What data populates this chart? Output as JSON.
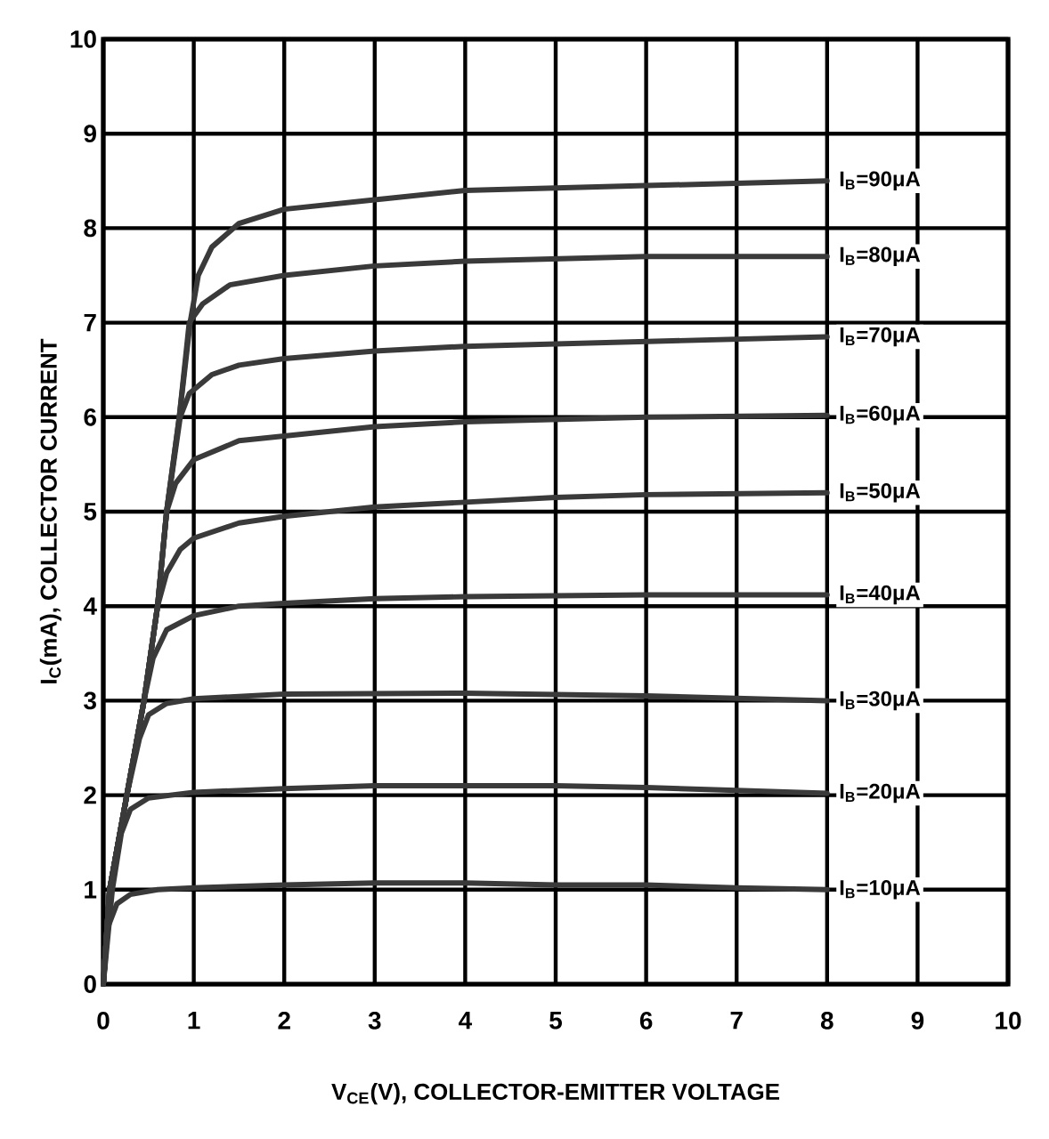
{
  "chart_data": {
    "type": "line",
    "xlabel": "V$_{CE}$(V), COLLECTOR-EMITTER VOLTAGE",
    "ylabel": "I$_{C}$(mA), COLLECTOR CURRENT",
    "xlim": [
      0,
      10
    ],
    "ylim": [
      0,
      10
    ],
    "xticks": [
      0,
      1,
      2,
      3,
      4,
      5,
      6,
      7,
      8,
      9,
      10
    ],
    "yticks": [
      0,
      1,
      2,
      3,
      4,
      5,
      6,
      7,
      8,
      9,
      10
    ],
    "grid": true,
    "marker": "none",
    "line_style": "solid",
    "series": [
      {
        "name": "I$_{B}$=10μA",
        "color": "#3a3a3a",
        "x": [
          0,
          0.05,
          0.15,
          0.3,
          0.6,
          1,
          2,
          3,
          4,
          5,
          6,
          7,
          8
        ],
        "values": [
          0,
          0.6,
          0.85,
          0.95,
          1.0,
          1.02,
          1.05,
          1.07,
          1.07,
          1.05,
          1.05,
          1.02,
          1.0
        ]
      },
      {
        "name": "I$_{B}$=20μA",
        "color": "#3a3a3a",
        "x": [
          0,
          0.1,
          0.2,
          0.3,
          0.5,
          1,
          2,
          3,
          4,
          5,
          6,
          7,
          8
        ],
        "values": [
          0,
          1.0,
          1.6,
          1.85,
          1.97,
          2.03,
          2.07,
          2.1,
          2.1,
          2.1,
          2.08,
          2.05,
          2.02
        ]
      },
      {
        "name": "I$_{B}$=30μA",
        "color": "#3a3a3a",
        "x": [
          0,
          0.07,
          0.26,
          0.4,
          0.5,
          0.7,
          1,
          2,
          4,
          6,
          8
        ],
        "values": [
          0,
          1,
          2,
          2.6,
          2.85,
          2.97,
          3.02,
          3.07,
          3.08,
          3.05,
          3.0
        ]
      },
      {
        "name": "I$_{B}$=40μA",
        "color": "#3a3a3a",
        "x": [
          0,
          0.07,
          0.26,
          0.45,
          0.55,
          0.7,
          1,
          1.5,
          2,
          3,
          4,
          6,
          8
        ],
        "values": [
          0,
          1,
          2,
          3,
          3.45,
          3.75,
          3.9,
          4.0,
          4.03,
          4.08,
          4.1,
          4.12,
          4.12
        ]
      },
      {
        "name": "I$_{B}$=50μA",
        "color": "#3a3a3a",
        "x": [
          0,
          0.07,
          0.26,
          0.45,
          0.6,
          0.7,
          0.85,
          1,
          1.5,
          2,
          3,
          4,
          5,
          6,
          8
        ],
        "values": [
          0,
          1,
          2,
          3,
          4.0,
          4.35,
          4.6,
          4.72,
          4.88,
          4.95,
          5.05,
          5.1,
          5.15,
          5.18,
          5.2
        ]
      },
      {
        "name": "I$_{B}$=60μA",
        "color": "#3a3a3a",
        "x": [
          0,
          0.07,
          0.26,
          0.45,
          0.6,
          0.7,
          0.8,
          1,
          1.5,
          2,
          3,
          4,
          6,
          8
        ],
        "values": [
          0,
          1,
          2,
          3,
          4,
          5.0,
          5.3,
          5.55,
          5.75,
          5.8,
          5.9,
          5.95,
          6.0,
          6.02
        ]
      },
      {
        "name": "I$_{B}$=70μA",
        "color": "#3a3a3a",
        "x": [
          0,
          0.07,
          0.26,
          0.45,
          0.6,
          0.7,
          0.85,
          0.95,
          1.2,
          1.5,
          2,
          3,
          4,
          6,
          8
        ],
        "values": [
          0,
          1,
          2,
          3,
          4,
          5,
          6.0,
          6.25,
          6.45,
          6.55,
          6.62,
          6.7,
          6.75,
          6.8,
          6.85
        ]
      },
      {
        "name": "I$_{B}$=80μA",
        "color": "#3a3a3a",
        "x": [
          0,
          0.07,
          0.26,
          0.45,
          0.6,
          0.7,
          0.84,
          0.95,
          1.1,
          1.4,
          2,
          3,
          4,
          6,
          8
        ],
        "values": [
          0,
          1,
          2,
          3,
          4,
          5,
          6,
          7.0,
          7.2,
          7.4,
          7.5,
          7.6,
          7.65,
          7.7,
          7.7
        ]
      },
      {
        "name": "I$_{B}$=90μA",
        "color": "#3a3a3a",
        "x": [
          0,
          0.07,
          0.26,
          0.45,
          0.6,
          0.7,
          0.84,
          0.96,
          1.05,
          1.2,
          1.5,
          2,
          3,
          4,
          6,
          8
        ],
        "values": [
          0,
          1,
          2,
          3,
          4,
          5,
          6,
          7,
          7.5,
          7.8,
          8.05,
          8.2,
          8.3,
          8.4,
          8.45,
          8.5
        ]
      }
    ]
  }
}
